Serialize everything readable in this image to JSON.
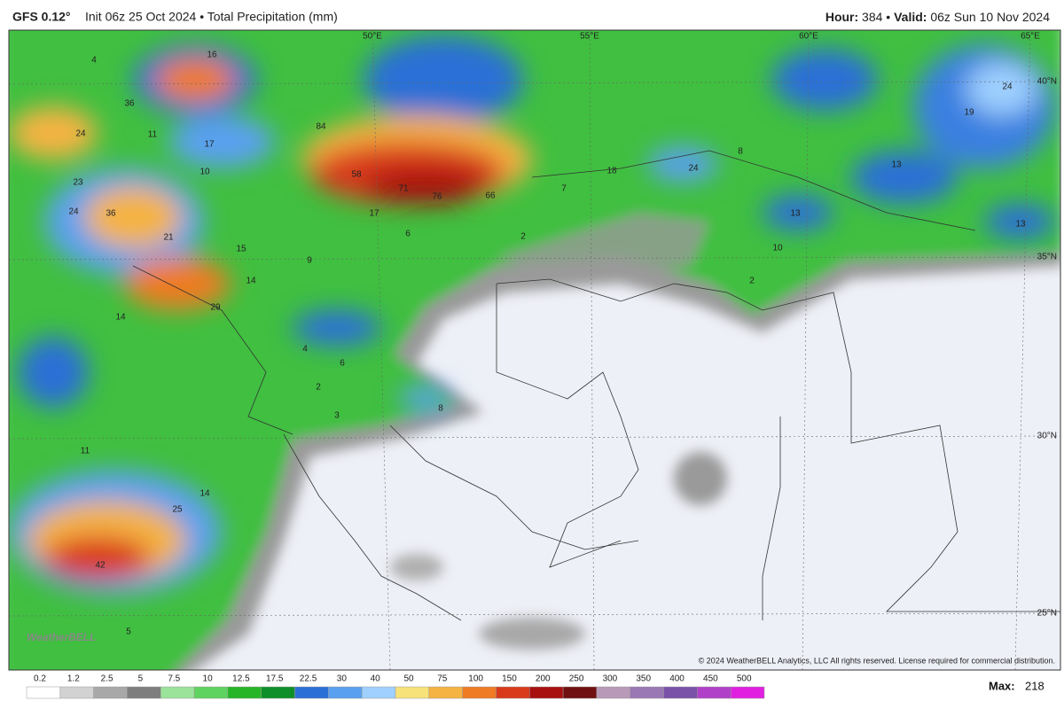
{
  "header": {
    "model": "GFS 0.12°",
    "info": "Init 06z 25 Oct 2024 • Total Precipitation (mm)",
    "hour_label": "Hour:",
    "hour": 384,
    "separator": "•",
    "valid_label": "Valid:",
    "valid": "06z Sun 10 Nov 2024"
  },
  "grid_labels": [
    "50°E",
    "55°E",
    "60°E",
    "65°E",
    "40°N",
    "35°N",
    "30°N",
    "25°N"
  ],
  "map_values": [
    84,
    58,
    71,
    76,
    66,
    24,
    36,
    21,
    29,
    42,
    25,
    14,
    13,
    13,
    13,
    10,
    19,
    24,
    17,
    17,
    15,
    14,
    14,
    8,
    18,
    23,
    24,
    10,
    11,
    36,
    24,
    16,
    4,
    9,
    4,
    6,
    2,
    3,
    8,
    11,
    2,
    2,
    7,
    6,
    5
  ],
  "logo": "WeatherBELL",
  "copyright": "© 2024 WeatherBELL Analytics, LLC All rights reserved. License required for commercial distribution.",
  "colorbar": {
    "labels": [
      0.2,
      1.2,
      2.5,
      5,
      7.5,
      10,
      12.5,
      17.5,
      22.5,
      30,
      40,
      50,
      75,
      100,
      150,
      200,
      250,
      300,
      350,
      400,
      450,
      500
    ],
    "colors": [
      "#ffffff",
      "#d2d2d2",
      "#a8a8a8",
      "#7e7e7e",
      "#9be39b",
      "#5fd35f",
      "#26b526",
      "#0f8f2a",
      "#2a6fd6",
      "#5aa0f0",
      "#9fd0ff",
      "#f7e27a",
      "#f5b342",
      "#ef7b24",
      "#d93a1a",
      "#a81010",
      "#701010",
      "#b89ab8",
      "#9a78b4",
      "#7a52a8",
      "#b040c8",
      "#e020e0"
    ]
  },
  "max": {
    "label": "Max:",
    "value": 218
  }
}
